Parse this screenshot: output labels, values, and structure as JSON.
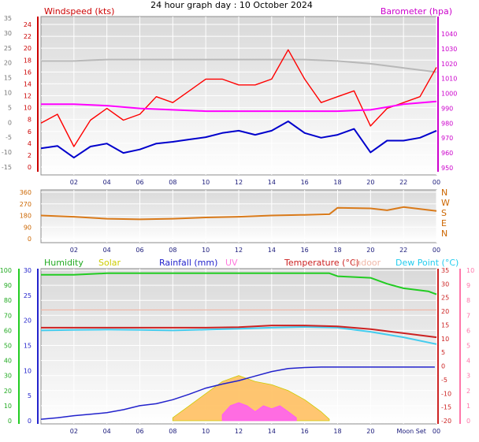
{
  "title": "24 hour graph day : 10 October 2024",
  "colors": {
    "wind_avg": "#0000cc",
    "wind_gust": "#ff0000",
    "baro": "#ff00ff",
    "baro_prev": "#b8b8b8",
    "dir": "#d97a1a",
    "humidity": "#22cc22",
    "solar": "#cccc00",
    "solar_fill": "#ffb84d",
    "rain": "#2222cc",
    "uv": "#ff55ff",
    "temp": "#cc2222",
    "indoor": "#f0b8a8",
    "dewpoint": "#44ccee"
  },
  "chart_data": [
    {
      "type": "line",
      "panel": "wind_baro",
      "x_ticks": [
        "02",
        "04",
        "06",
        "08",
        "10",
        "12",
        "14",
        "16",
        "18",
        "20",
        "22",
        "00"
      ],
      "y_left": {
        "label": "Windspeed (kts)",
        "ticks": [
          "24",
          "22",
          "20",
          "18",
          "16",
          "14",
          "12",
          "10",
          "8",
          "6",
          "4",
          "2",
          "0"
        ],
        "range": [
          0,
          25
        ]
      },
      "y_far_left": {
        "ticks": [
          "35",
          "30",
          "25",
          "20",
          "15",
          "10",
          "5",
          "0",
          "-5",
          "-10",
          "-15"
        ]
      },
      "y_right": {
        "label": "Barometer (hpa)",
        "ticks": [
          "1040",
          "1030",
          "1020",
          "1010",
          "1000",
          "990",
          "980",
          "970",
          "960",
          "950"
        ],
        "range": [
          945,
          1050
        ]
      },
      "series": [
        {
          "name": "Windspeed (kts)",
          "key": "wind_avg",
          "x": [
            0,
            1,
            2,
            3,
            4,
            5,
            6,
            7,
            8,
            9,
            10,
            11,
            12,
            13,
            14,
            15,
            16,
            17,
            18,
            19,
            20,
            21,
            22,
            23,
            24
          ],
          "values": [
            3.2,
            3.6,
            1.6,
            3.5,
            4.0,
            2.4,
            3.0,
            4.0,
            4.3,
            4.7,
            5.1,
            5.8,
            6.2,
            5.5,
            6.2,
            7.8,
            5.8,
            5.0,
            5.5,
            6.5,
            2.5,
            4.5,
            4.5,
            5.0,
            6.2
          ]
        },
        {
          "name": "Gust",
          "key": "wind_gust",
          "x": [
            0,
            1,
            2,
            3,
            4,
            5,
            6,
            7,
            8,
            9,
            10,
            11,
            12,
            13,
            14,
            15,
            16,
            17,
            18,
            19,
            20,
            21,
            22,
            23,
            24
          ],
          "values": [
            7.5,
            9.0,
            3.5,
            8.0,
            10.0,
            8.0,
            9.0,
            12.0,
            11.0,
            13.0,
            15.0,
            15.0,
            14.0,
            14.0,
            15.0,
            20.0,
            15.0,
            11.0,
            12.0,
            13.0,
            7.0,
            10.0,
            11.0,
            12.0,
            17.0
          ]
        },
        {
          "name": "Barometer (hpa)",
          "key": "baro",
          "x": [
            0,
            2,
            4,
            6,
            8,
            10,
            12,
            14,
            16,
            18,
            20,
            22,
            24
          ],
          "values": [
            990,
            990,
            989,
            987,
            986,
            985,
            985,
            985,
            985,
            985,
            986,
            990,
            992
          ]
        },
        {
          "name": "Barometer (previous)",
          "key": "baro_prev",
          "x": [
            0,
            2,
            4,
            6,
            8,
            10,
            12,
            14,
            16,
            18,
            20,
            22,
            24
          ],
          "values": [
            1021,
            1021,
            1022,
            1022,
            1022,
            1022,
            1022,
            1022,
            1022,
            1021,
            1019,
            1016,
            1013
          ]
        }
      ]
    },
    {
      "type": "line",
      "panel": "wind_direction",
      "x_ticks": [
        "02",
        "04",
        "06",
        "08",
        "10",
        "12",
        "14",
        "16",
        "18",
        "20",
        "22",
        "00"
      ],
      "y_left": {
        "ticks": [
          "360",
          "270",
          "180",
          "90",
          "0"
        ],
        "range": [
          0,
          360
        ]
      },
      "y_right": {
        "ticks": [
          "N",
          "W",
          "S",
          "E",
          "N"
        ]
      },
      "series": [
        {
          "name": "Direction",
          "key": "dir",
          "x": [
            0,
            2,
            4,
            6,
            8,
            10,
            12,
            14,
            16,
            17.5,
            18,
            20,
            21,
            22,
            24
          ],
          "values": [
            180,
            170,
            155,
            150,
            155,
            165,
            170,
            180,
            185,
            190,
            240,
            235,
            220,
            245,
            215
          ]
        }
      ]
    },
    {
      "type": "line",
      "panel": "temp_humidity_rain",
      "x_ticks": [
        "02",
        "04",
        "06",
        "08",
        "10",
        "12",
        "14",
        "16",
        "18",
        "20",
        "Moon Set",
        "00"
      ],
      "y_far_left": {
        "ticks": [
          "100",
          "90",
          "80",
          "70",
          "60",
          "50",
          "40",
          "30",
          "20",
          "10",
          "0"
        ]
      },
      "y_left": {
        "ticks": [
          "30",
          "25",
          "20",
          "15",
          "10",
          "5",
          "0"
        ]
      },
      "y_right": {
        "ticks": [
          "35",
          "30",
          "25",
          "20",
          "15",
          "10",
          "5",
          "0",
          "-5",
          "-10",
          "-15",
          "-20"
        ]
      },
      "y_far_right": {
        "ticks": [
          "10",
          "9",
          "8",
          "7",
          "6",
          "5",
          "4",
          "3",
          "2",
          "1",
          "0"
        ]
      },
      "legend": [
        "Humidity",
        "Solar",
        "Rainfall (mm)",
        "UV",
        "Temperature (°C)",
        "Indoor",
        "Dew Point (°C)"
      ],
      "series": [
        {
          "name": "Humidity",
          "key": "humidity",
          "x": [
            0,
            2,
            4,
            6,
            8,
            10,
            12,
            14,
            16,
            17.5,
            18,
            20,
            21,
            22,
            23.5,
            24
          ],
          "values": [
            97,
            97,
            98,
            98,
            98,
            98,
            98,
            98,
            98,
            98,
            96,
            95,
            91,
            88,
            86,
            84
          ]
        },
        {
          "name": "Temperature (°C)",
          "key": "temp",
          "x": [
            0,
            2,
            4,
            6,
            8,
            10,
            12,
            14,
            16,
            18,
            20,
            22,
            24
          ],
          "values": [
            14.0,
            14.0,
            14.0,
            14.0,
            14.0,
            14.0,
            14.2,
            14.8,
            14.8,
            14.5,
            13.5,
            12.0,
            10.5
          ]
        },
        {
          "name": "Dew Point (°C)",
          "key": "dewpoint",
          "x": [
            0,
            2,
            4,
            6,
            8,
            10,
            12,
            14,
            16,
            18,
            20,
            22,
            24
          ],
          "values": [
            13.0,
            13.2,
            13.3,
            13.2,
            13.0,
            13.3,
            13.6,
            14.0,
            14.3,
            14.0,
            12.5,
            10.5,
            8.0
          ]
        },
        {
          "name": "Indoor",
          "key": "indoor",
          "x": [
            0,
            4,
            8,
            12,
            16,
            18,
            20,
            22,
            24
          ],
          "values": [
            20.5,
            20.5,
            20.5,
            20.5,
            20.5,
            20.5,
            20.5,
            20.5,
            20.5
          ]
        },
        {
          "name": "Rainfall (mm)",
          "key": "rain",
          "x": [
            0,
            1,
            2,
            3,
            4,
            5,
            6,
            7,
            8,
            9,
            10,
            11,
            12,
            13,
            14,
            15,
            16,
            17,
            18,
            19,
            20,
            21,
            22,
            23,
            23.9
          ],
          "values": [
            0.3,
            0.6,
            1.0,
            1.3,
            1.6,
            2.2,
            3.0,
            3.4,
            4.2,
            5.3,
            6.5,
            7.3,
            8.0,
            8.9,
            9.8,
            10.4,
            10.6,
            10.7,
            10.7,
            10.7,
            10.7,
            10.7,
            10.7,
            10.7,
            10.7
          ]
        },
        {
          "name": "Solar",
          "key": "solar",
          "x": [
            8,
            9,
            10,
            11,
            12,
            13,
            14,
            15,
            16,
            17,
            17.5
          ],
          "values": [
            0.2,
            1.0,
            1.8,
            2.6,
            3.0,
            2.6,
            2.4,
            2.0,
            1.4,
            0.6,
            0.1
          ]
        },
        {
          "name": "UV",
          "key": "uv",
          "x": [
            11,
            11.5,
            12,
            12.5,
            13,
            13.5,
            14,
            14.5,
            15,
            15.5
          ],
          "values": [
            0.4,
            1.0,
            1.2,
            1.0,
            0.6,
            1.0,
            0.8,
            1.0,
            0.6,
            0.2
          ]
        }
      ]
    }
  ]
}
